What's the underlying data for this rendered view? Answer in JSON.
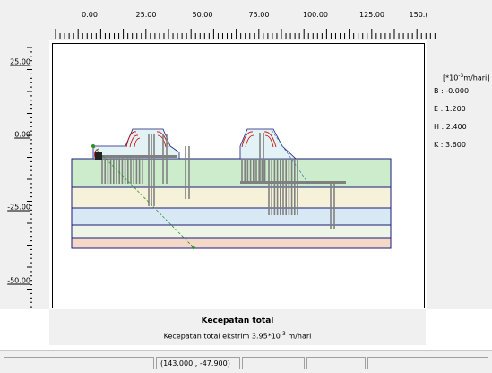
{
  "ruler_top": {
    "labels": [
      "0.00",
      "25.00",
      "50.00",
      "75.00",
      "100.00",
      "125.00",
      "150.("
    ]
  },
  "ruler_left": {
    "labels": [
      "25.00",
      "0.00",
      "-25.00",
      "-50.00"
    ]
  },
  "legend": {
    "unit_prefix": "[*10",
    "unit_exp": "-3",
    "unit_suffix": "m/hari]",
    "entries": [
      {
        "key": "B",
        "value": "-0.000"
      },
      {
        "key": "E",
        "value": "1.200"
      },
      {
        "key": "H",
        "value": "2.400"
      },
      {
        "key": "K",
        "value": "3.600"
      }
    ]
  },
  "caption": {
    "title": "Kecepatan total",
    "sub_prefix": "Kecepatan total ekstrim 3.95*10",
    "sub_exp": "-3",
    "sub_suffix": " m/hari"
  },
  "status": {
    "coords": "(143.000 , -47.900)"
  },
  "colors": {
    "layer1": "#cceccc",
    "layer2": "#f5f2d9",
    "layer3": "#d9e8f5",
    "layer4": "#eef5e6",
    "layer5": "#f5d9c8",
    "embankment": "#e2f2f5",
    "contour": "#cc0000",
    "outline": "#1a1a7a"
  }
}
